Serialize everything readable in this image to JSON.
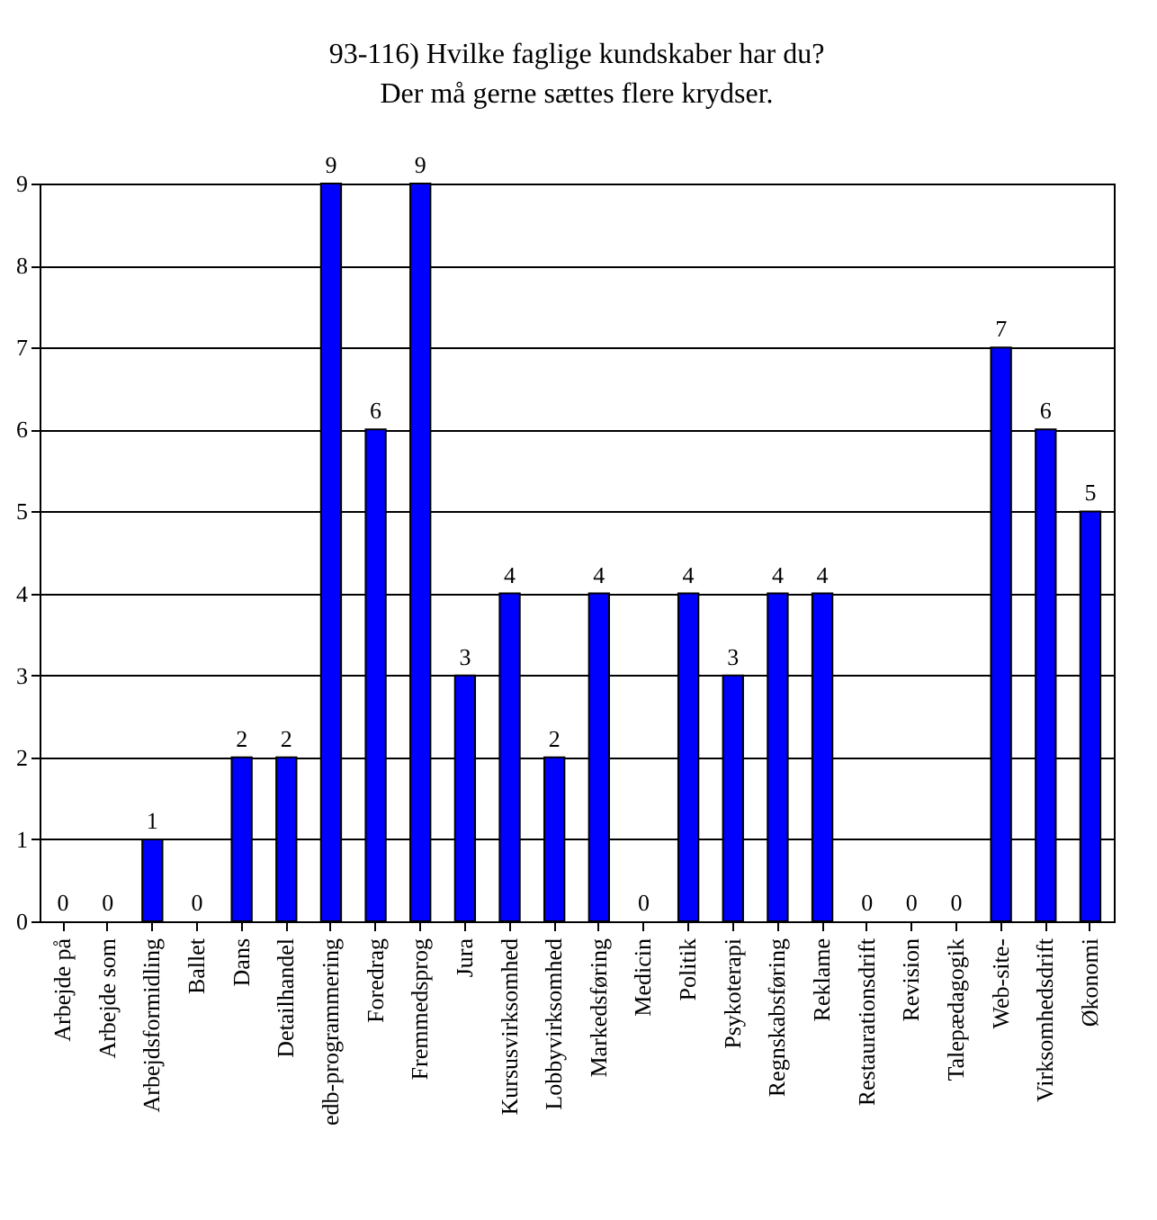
{
  "chart_data": {
    "type": "bar",
    "title": "93-116) Hvilke faglige kundskaber har du?",
    "subtitle": "Der må gerne sættes flere krydser.",
    "categories": [
      "Arbejde på",
      "Arbejde som",
      "Arbejdsformidling",
      "Ballet",
      "Dans",
      "Detailhandel",
      "edb-programmering",
      "Foredrag",
      "Fremmedsprog",
      "Jura",
      "Kursusvirksomhed",
      "Lobbyvirksomhed",
      "Markedsføring",
      "Medicin",
      "Politik",
      "Psykoterapi",
      "Regnskabsføring",
      "Reklame",
      "Restaurationsdrift",
      "Revision",
      "Talepædagogik",
      "Web-site-",
      "Virksomhedsdrift",
      "Økonomi"
    ],
    "values": [
      0,
      0,
      1,
      0,
      2,
      2,
      9,
      6,
      9,
      3,
      4,
      2,
      4,
      0,
      4,
      3,
      4,
      4,
      0,
      0,
      0,
      7,
      6,
      5
    ],
    "color": "#0000ff",
    "ylim": [
      0,
      9
    ],
    "yticks": [
      0,
      1,
      2,
      3,
      4,
      5,
      6,
      7,
      8,
      9
    ],
    "grid": "y",
    "data_labels": true
  }
}
